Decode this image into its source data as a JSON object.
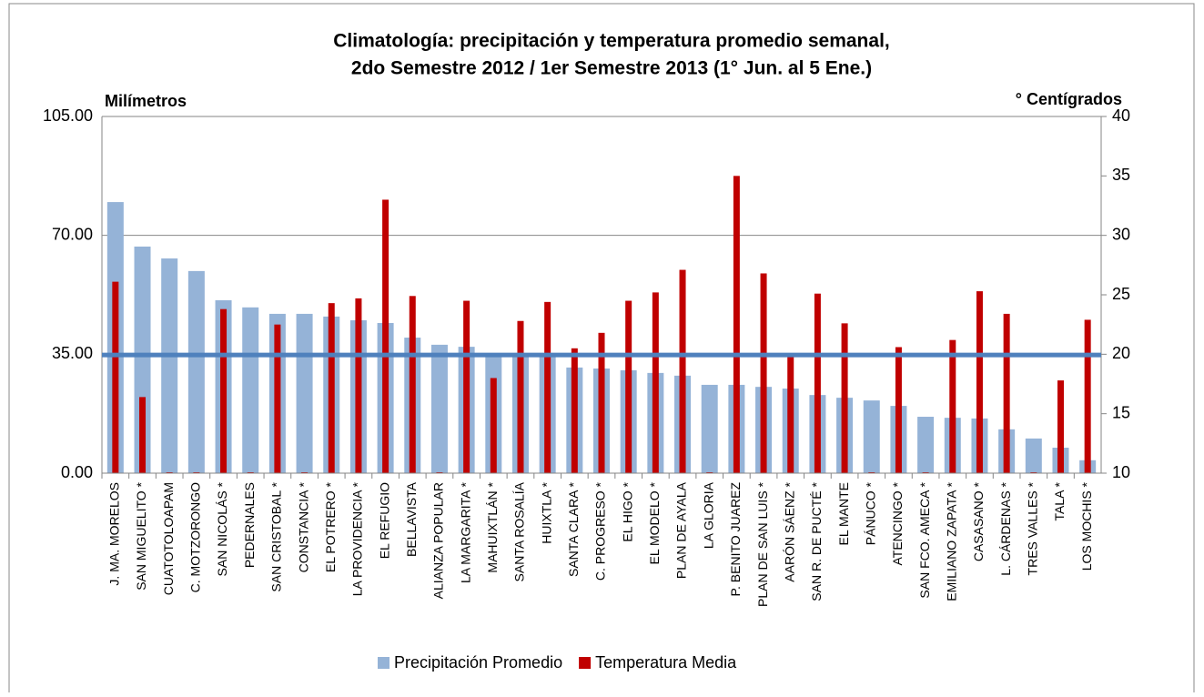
{
  "chart_data": {
    "type": "bar",
    "title": [
      "Climatología: precipitación y temperatura promedio semanal,",
      "2do Semestre 2012 / 1er Semestre 2013 (1° Jun. al 5 Ene.)"
    ],
    "y_label": "Milímetros",
    "y2_label": "° Centígrados",
    "categories": [
      "J. MA. MORELOS",
      "SAN MIGUELITO *",
      "CUATOTOLOAPAM",
      "C. MOTZORONGO",
      "SAN NICOLÁS *",
      "PEDERNALES",
      "SAN CRISTOBAL *",
      "CONSTANCIA *",
      "EL POTRERO *",
      "LA PROVIDENCIA *",
      "EL REFUGIO",
      "BELLAVISTA",
      "ALIANZA POPULAR",
      "LA MARGARITA *",
      "MAHUIXTLÁN *",
      "SANTA ROSALÍA",
      "HUIXTLA *",
      "SANTA CLARA *",
      "C. PROGRESO *",
      "EL HIGO *",
      "EL MODELO *",
      "PLAN DE AYALA",
      "LA GLORIA",
      "P. BENITO JUAREZ",
      "PLAN DE SAN LUIS *",
      "AARÓN SÁENZ *",
      "SAN R. DE PUCTÉ *",
      "EL MANTE",
      "PÁNUCO *",
      "ATENCINGO *",
      "SAN FCO. AMECA *",
      "EMILIANO ZAPATA *",
      "CASASANO *",
      "L. CÁRDENAS *",
      "TRES VALLES *",
      "TALA *",
      "LOS MOCHIS *"
    ],
    "series": [
      {
        "name": "Precipitación Promedio",
        "color": "#95b3d7",
        "values": [
          79.8,
          66.7,
          63.2,
          59.5,
          50.9,
          48.8,
          46.9,
          46.9,
          46.1,
          45,
          44.2,
          39.9,
          37.8,
          37.2,
          34.8,
          34.8,
          34.3,
          31.1,
          30.8,
          30.3,
          29.5,
          28.7,
          26,
          26,
          25.4,
          24.9,
          23,
          22.2,
          21.4,
          19.8,
          16.6,
          16.3,
          16.1,
          12.9,
          10.2,
          7.5,
          3.8
        ]
      },
      {
        "name": "Temperatura Media",
        "color": "#c00000",
        "axis": "y2",
        "values": [
          26.1,
          16.4,
          10,
          10,
          23.8,
          10,
          22.5,
          10,
          24.3,
          24.7,
          33,
          24.9,
          10,
          24.5,
          18,
          22.8,
          24.4,
          20.5,
          21.8,
          24.5,
          25.2,
          27.1,
          10,
          35,
          26.8,
          19.8,
          25.1,
          22.6,
          10,
          20.6,
          10,
          21.2,
          25.3,
          23.4,
          10,
          17.8,
          22.9
        ]
      }
    ],
    "reference_line": {
      "value": 34.8,
      "color": "#4f81bd"
    },
    "ylim": [
      0,
      105
    ],
    "yticks": [
      {
        "value": 0,
        "label": "0.00"
      },
      {
        "value": 35,
        "label": "35.00"
      },
      {
        "value": 70,
        "label": "70.00"
      },
      {
        "value": 105,
        "label": "105.00"
      }
    ],
    "y2lim": [
      10,
      40
    ],
    "y2ticks": [
      10,
      15,
      20,
      25,
      30,
      35,
      40
    ],
    "grid": true
  }
}
